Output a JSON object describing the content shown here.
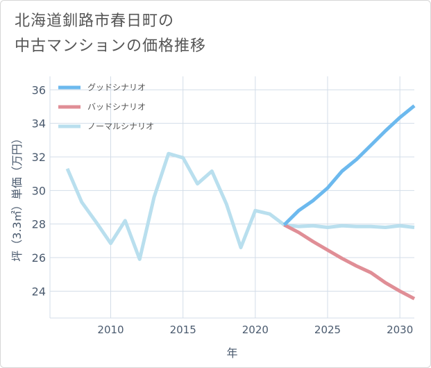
{
  "title": {
    "line1": "北海道釧路市春日町の",
    "line2": "中古マンションの価格推移"
  },
  "chart_data": {
    "type": "line",
    "xlabel": "年",
    "ylabel": "坪（3.3㎡）単価（万円）",
    "xlim": [
      2005.8,
      2031
    ],
    "ylim": [
      22.4,
      36.8
    ],
    "xticks": [
      2010,
      2015,
      2020,
      2025,
      2030
    ],
    "xtick_labels": [
      "2010",
      "2015",
      "2020",
      "2025",
      "2030"
    ],
    "yticks": [
      24,
      26,
      28,
      30,
      32,
      34,
      36
    ],
    "ytick_labels": [
      "24",
      "26",
      "28",
      "30",
      "32",
      "34",
      "36"
    ],
    "grid": true,
    "legend_position": "top-left",
    "series": [
      {
        "name": "グッドシナリオ",
        "color": "#6cb9ee",
        "x": [
          2022,
          2023,
          2024,
          2025,
          2026,
          2027,
          2028,
          2029,
          2030,
          2031
        ],
        "values": [
          27.95,
          28.8,
          29.4,
          30.15,
          31.15,
          31.85,
          32.7,
          33.55,
          34.35,
          35.05
        ]
      },
      {
        "name": "バッドシナリオ",
        "color": "#e08e96",
        "x": [
          2022,
          2023,
          2024,
          2025,
          2026,
          2027,
          2028,
          2029,
          2030,
          2031
        ],
        "values": [
          27.95,
          27.5,
          26.95,
          26.45,
          25.95,
          25.5,
          25.1,
          24.5,
          24.0,
          23.55
        ]
      },
      {
        "name": "ノーマルシナリオ",
        "color": "#b9dfee",
        "x": [
          2007,
          2008,
          2009,
          2010,
          2011,
          2012,
          2013,
          2014,
          2015,
          2016,
          2017,
          2018,
          2019,
          2020,
          2021,
          2022,
          2023,
          2024,
          2025,
          2026,
          2027,
          2028,
          2029,
          2030,
          2031
        ],
        "values": [
          31.3,
          29.3,
          28.1,
          26.85,
          28.2,
          25.9,
          29.6,
          32.2,
          31.95,
          30.4,
          31.15,
          29.2,
          26.6,
          28.8,
          28.6,
          27.95,
          27.85,
          27.9,
          27.8,
          27.9,
          27.85,
          27.85,
          27.8,
          27.9,
          27.8
        ]
      }
    ]
  }
}
